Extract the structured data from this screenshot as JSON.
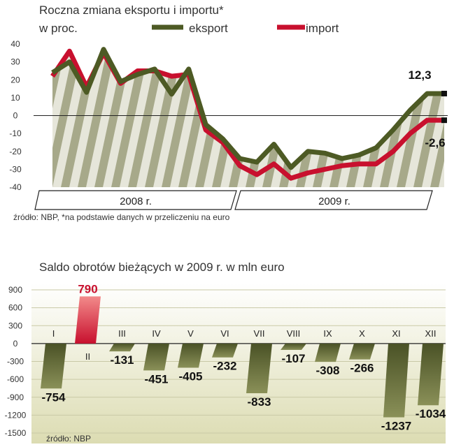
{
  "chart_data": [
    {
      "type": "line",
      "title": "Roczna zmiana eksportu i importu*",
      "subtitle": "w proc.",
      "source": "źródło: NBP, *na podstawie danych w przeliczeniu na euro",
      "ylim": [
        -40,
        40
      ],
      "yticks": [
        40,
        30,
        20,
        10,
        0,
        -10,
        -20,
        -30,
        -40
      ],
      "x_groups": [
        "2008 r.",
        "2009 r."
      ],
      "x": [
        "2008-01",
        "2008-02",
        "2008-03",
        "2008-04",
        "2008-05",
        "2008-06",
        "2008-07",
        "2008-08",
        "2008-09",
        "2008-10",
        "2008-11",
        "2008-12",
        "2009-01",
        "2009-02",
        "2009-03",
        "2009-04",
        "2009-05",
        "2009-06",
        "2009-07",
        "2009-08",
        "2009-09",
        "2009-10",
        "2009-11",
        "2009-12"
      ],
      "legend_position": "top",
      "series": [
        {
          "name": "eksport",
          "color": "#4d5a24",
          "values": [
            24,
            30,
            13,
            37,
            19,
            23,
            26,
            12,
            26,
            -5,
            -13,
            -24,
            -26,
            -16,
            -29,
            -20,
            -21,
            -24,
            -22,
            -18,
            -8,
            3,
            12.3,
            12.3
          ]
        },
        {
          "name": "import",
          "color": "#c8102e",
          "values": [
            22,
            36,
            16,
            35,
            18,
            25,
            25,
            22,
            23,
            -8,
            -15,
            -28,
            -33,
            -27,
            -35,
            -32,
            -30,
            -28,
            -27,
            -27,
            -20,
            -10,
            -2.6,
            -2.6
          ]
        }
      ],
      "end_labels": {
        "eksport": "12,3",
        "import": "-2,6"
      }
    },
    {
      "type": "bar",
      "title": "Saldo obrotów bieżących w 2009 r. w mln euro",
      "source": "źródło: NBP",
      "ylim": [
        -1500,
        900
      ],
      "yticks": [
        900,
        600,
        300,
        0,
        -300,
        -600,
        -900,
        -1200,
        -1500
      ],
      "categories": [
        "I",
        "II",
        "III",
        "IV",
        "V",
        "VI",
        "VII",
        "VIII",
        "IX",
        "X",
        "XI",
        "XII"
      ],
      "values": [
        -754,
        790,
        -131,
        -451,
        -405,
        -232,
        -833,
        -107,
        -308,
        -266,
        -1237,
        -1034
      ],
      "labels": [
        "-754",
        "790",
        "-131",
        "-451",
        "-405",
        "-232",
        "-833",
        "-107",
        "-308",
        "-266",
        "-1237",
        "-1034"
      ],
      "colors": {
        "negative": "#5c6433",
        "positive": "#c8102e"
      },
      "grid": true
    }
  ]
}
